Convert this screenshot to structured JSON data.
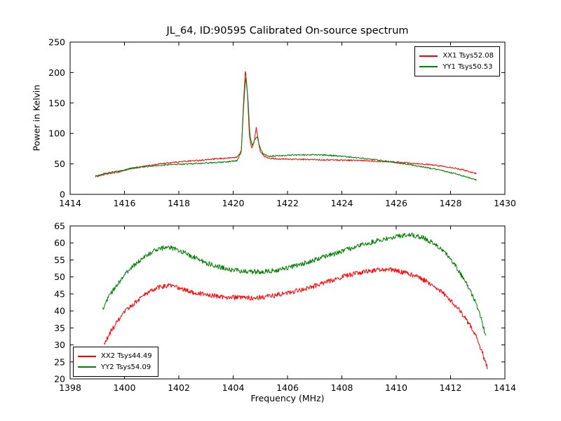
{
  "chart_data": [
    {
      "type": "line",
      "title": "JL_64, ID:90595 Calibrated On-source spectrum",
      "xlabel": "",
      "ylabel": "Power in Kelvin",
      "xlim": [
        1414,
        1430
      ],
      "ylim": [
        0,
        250
      ],
      "xticks": [
        1414,
        1416,
        1418,
        1420,
        1422,
        1424,
        1426,
        1428,
        1430
      ],
      "yticks": [
        0,
        50,
        100,
        150,
        200,
        250
      ],
      "grid": false,
      "legend_position": "upper right",
      "series": [
        {
          "name": "XX1 Tsys52.08",
          "color": "#ff0000",
          "noise": 1.1,
          "points": [
            [
              1414.93,
              29
            ],
            [
              1415.3,
              33
            ],
            [
              1415.8,
              37
            ],
            [
              1416.3,
              43
            ],
            [
              1416.8,
              46.5
            ],
            [
              1417.3,
              50
            ],
            [
              1417.8,
              52.5
            ],
            [
              1418.3,
              54.5
            ],
            [
              1418.8,
              56
            ],
            [
              1419.3,
              58
            ],
            [
              1419.8,
              59.5
            ],
            [
              1420.15,
              61
            ],
            [
              1420.3,
              72
            ],
            [
              1420.38,
              150
            ],
            [
              1420.45,
              205
            ],
            [
              1420.52,
              170
            ],
            [
              1420.6,
              95
            ],
            [
              1420.68,
              75
            ],
            [
              1420.78,
              88
            ],
            [
              1420.85,
              110
            ],
            [
              1420.92,
              90
            ],
            [
              1421.0,
              70
            ],
            [
              1421.15,
              62
            ],
            [
              1421.4,
              59
            ],
            [
              1421.8,
              58
            ],
            [
              1422.3,
              57.5
            ],
            [
              1423.0,
              57
            ],
            [
              1423.7,
              56.5
            ],
            [
              1424.4,
              56
            ],
            [
              1425.0,
              55
            ],
            [
              1425.6,
              54
            ],
            [
              1426.2,
              52.5
            ],
            [
              1426.8,
              50.5
            ],
            [
              1427.4,
              48
            ],
            [
              1428.0,
              44.5
            ],
            [
              1428.5,
              40
            ],
            [
              1428.95,
              34
            ]
          ]
        },
        {
          "name": "YY1 Tsys50.53",
          "color": "#008000",
          "noise": 1.1,
          "points": [
            [
              1414.93,
              30
            ],
            [
              1415.3,
              34.5
            ],
            [
              1415.8,
              38.5
            ],
            [
              1416.3,
              43
            ],
            [
              1416.8,
              45.5
            ],
            [
              1417.3,
              47.5
            ],
            [
              1417.8,
              49
            ],
            [
              1418.3,
              50
            ],
            [
              1418.8,
              51
            ],
            [
              1419.3,
              52
            ],
            [
              1419.8,
              53.5
            ],
            [
              1420.15,
              55.5
            ],
            [
              1420.3,
              70
            ],
            [
              1420.38,
              140
            ],
            [
              1420.46,
              193
            ],
            [
              1420.54,
              160
            ],
            [
              1420.62,
              95
            ],
            [
              1420.7,
              80
            ],
            [
              1420.8,
              90
            ],
            [
              1420.88,
              95
            ],
            [
              1420.96,
              80
            ],
            [
              1421.1,
              66
            ],
            [
              1421.35,
              62.5
            ],
            [
              1421.7,
              63.5
            ],
            [
              1422.2,
              64.5
            ],
            [
              1422.8,
              65
            ],
            [
              1423.4,
              64.5
            ],
            [
              1424.0,
              62.5
            ],
            [
              1424.6,
              60
            ],
            [
              1425.2,
              57
            ],
            [
              1425.8,
              53.5
            ],
            [
              1426.4,
              49.5
            ],
            [
              1427.0,
              45
            ],
            [
              1427.6,
              40
            ],
            [
              1428.2,
              33.5
            ],
            [
              1428.7,
              27
            ],
            [
              1428.95,
              23.5
            ]
          ]
        }
      ]
    },
    {
      "type": "line",
      "title": "",
      "xlabel": "Frequency (MHz)",
      "ylabel": "",
      "xlim": [
        1398,
        1414
      ],
      "ylim": [
        20,
        65
      ],
      "xticks": [
        1398,
        1400,
        1402,
        1404,
        1406,
        1408,
        1410,
        1412,
        1414
      ],
      "yticks": [
        20,
        25,
        30,
        35,
        40,
        45,
        50,
        55,
        60,
        65
      ],
      "grid": false,
      "legend_position": "lower left",
      "series": [
        {
          "name": "XX2 Tsys44.49",
          "color": "#ff0000",
          "noise": 0.7,
          "points": [
            [
              1399.25,
              30
            ],
            [
              1399.5,
              34
            ],
            [
              1399.8,
              37.5
            ],
            [
              1400.1,
              40.5
            ],
            [
              1400.4,
              42.5
            ],
            [
              1400.7,
              44.5
            ],
            [
              1401.0,
              46
            ],
            [
              1401.3,
              47
            ],
            [
              1401.6,
              47.5
            ],
            [
              1401.9,
              47
            ],
            [
              1402.2,
              46.2
            ],
            [
              1402.6,
              45.3
            ],
            [
              1403.0,
              44.8
            ],
            [
              1403.5,
              44.2
            ],
            [
              1404.0,
              44
            ],
            [
              1404.5,
              43.8
            ],
            [
              1405.0,
              44
            ],
            [
              1405.5,
              44.5
            ],
            [
              1406.0,
              45.3
            ],
            [
              1406.5,
              46.2
            ],
            [
              1407.0,
              47.3
            ],
            [
              1407.5,
              48.7
            ],
            [
              1408.0,
              50
            ],
            [
              1408.5,
              51
            ],
            [
              1409.0,
              51.8
            ],
            [
              1409.5,
              52.2
            ],
            [
              1409.9,
              52
            ],
            [
              1410.3,
              51.3
            ],
            [
              1410.7,
              50.3
            ],
            [
              1411.1,
              48.8
            ],
            [
              1411.5,
              46.8
            ],
            [
              1411.9,
              44
            ],
            [
              1412.3,
              40.5
            ],
            [
              1412.7,
              36
            ],
            [
              1413.0,
              31.5
            ],
            [
              1413.35,
              23.5
            ]
          ]
        },
        {
          "name": "YY2 Tsys54.09",
          "color": "#008000",
          "noise": 0.7,
          "points": [
            [
              1399.2,
              40.5
            ],
            [
              1399.45,
              44.5
            ],
            [
              1399.7,
              47.5
            ],
            [
              1400.0,
              50.5
            ],
            [
              1400.3,
              53
            ],
            [
              1400.6,
              55
            ],
            [
              1400.9,
              56.8
            ],
            [
              1401.2,
              58
            ],
            [
              1401.5,
              58.7
            ],
            [
              1401.8,
              58.4
            ],
            [
              1402.1,
              57.5
            ],
            [
              1402.5,
              56
            ],
            [
              1402.9,
              54.5
            ],
            [
              1403.3,
              53.3
            ],
            [
              1403.8,
              52.3
            ],
            [
              1404.3,
              51.7
            ],
            [
              1404.8,
              51.5
            ],
            [
              1405.3,
              51.7
            ],
            [
              1405.8,
              52.3
            ],
            [
              1406.3,
              53.3
            ],
            [
              1406.8,
              54.5
            ],
            [
              1407.3,
              55.8
            ],
            [
              1407.8,
              57
            ],
            [
              1408.3,
              58.3
            ],
            [
              1408.8,
              59.5
            ],
            [
              1409.3,
              60.7
            ],
            [
              1409.8,
              61.5
            ],
            [
              1410.2,
              62.2
            ],
            [
              1410.6,
              62.3
            ],
            [
              1411.0,
              61.5
            ],
            [
              1411.4,
              59.8
            ],
            [
              1411.8,
              57
            ],
            [
              1412.2,
              53
            ],
            [
              1412.6,
              48
            ],
            [
              1412.9,
              43
            ],
            [
              1413.1,
              38.5
            ],
            [
              1413.3,
              32.5
            ]
          ]
        }
      ]
    }
  ]
}
